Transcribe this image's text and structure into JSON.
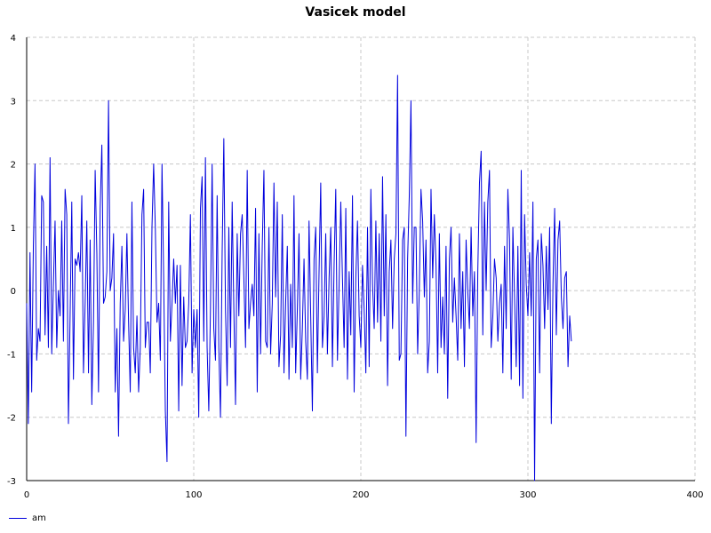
{
  "chart_data": {
    "type": "line",
    "title": "Vasicek model",
    "xlabel": "",
    "ylabel": "",
    "xlim": [
      0,
      400
    ],
    "ylim": [
      -3,
      4
    ],
    "x_ticks": [
      "0",
      "100",
      "200",
      "300",
      "400"
    ],
    "y_ticks": [
      "4",
      "3",
      "2",
      "1",
      "0",
      "-1",
      "-2",
      "-3"
    ],
    "grid": true,
    "legend_position": "bottom-left",
    "series": [
      {
        "name": "am",
        "color": "#0000dd",
        "x_start": 0,
        "x_step": 1,
        "values": [
          -0.2,
          -2.1,
          0.6,
          -1.6,
          0.7,
          2.0,
          -1.1,
          -0.6,
          -0.8,
          1.5,
          1.4,
          -0.7,
          0.7,
          -0.9,
          2.1,
          -1.0,
          0.1,
          1.1,
          -0.9,
          0.0,
          -0.4,
          1.1,
          -0.8,
          1.6,
          1.2,
          -2.1,
          -0.4,
          1.4,
          -1.4,
          0.5,
          0.4,
          0.6,
          0.3,
          1.5,
          -1.3,
          -0.2,
          1.1,
          -1.3,
          0.8,
          -1.8,
          -0.5,
          1.9,
          0.6,
          -1.6,
          1.3,
          2.3,
          -0.2,
          -0.1,
          0.3,
          3.0,
          0.0,
          0.2,
          0.9,
          -1.6,
          -0.6,
          -2.3,
          -0.2,
          0.7,
          -0.8,
          -0.3,
          0.9,
          -0.5,
          -1.6,
          1.4,
          -0.9,
          -1.3,
          -0.4,
          -1.6,
          -0.9,
          1.2,
          1.6,
          -0.9,
          -0.5,
          -0.5,
          -1.3,
          1.0,
          2.0,
          1.0,
          -0.5,
          -0.2,
          -1.1,
          2.0,
          0.2,
          -1.9,
          -2.7,
          1.4,
          -0.8,
          -0.2,
          0.5,
          -0.2,
          0.4,
          -1.9,
          0.4,
          -1.5,
          -0.1,
          -0.9,
          -0.8,
          -0.2,
          1.2,
          -1.3,
          -0.3,
          -0.9,
          -0.3,
          -2.0,
          1.3,
          1.8,
          -0.8,
          2.1,
          -0.9,
          -1.9,
          -0.3,
          2.0,
          -0.6,
          -1.1,
          1.5,
          -0.9,
          -2.0,
          0.6,
          2.4,
          -0.3,
          -1.5,
          1.0,
          -0.9,
          1.4,
          -0.3,
          -1.8,
          0.9,
          -0.4,
          0.9,
          1.2,
          0.2,
          -0.9,
          1.9,
          -0.6,
          -0.2,
          0.1,
          -0.4,
          1.3,
          -1.6,
          0.9,
          -1.0,
          0.7,
          1.9,
          -0.8,
          -0.9,
          1.0,
          -1.0,
          -0.2,
          1.7,
          -0.1,
          1.4,
          -1.2,
          -0.7,
          1.2,
          -1.3,
          -0.2,
          0.7,
          -1.4,
          0.1,
          -0.9,
          1.5,
          -1.3,
          -0.3,
          0.9,
          -1.4,
          -0.6,
          0.5,
          -0.8,
          -1.4,
          1.1,
          -0.4,
          -1.9,
          0.5,
          1.0,
          -1.3,
          0.3,
          1.7,
          -0.9,
          -0.4,
          0.9,
          -1.0,
          0.2,
          1.0,
          -1.2,
          0.4,
          1.6,
          -1.1,
          0.1,
          1.4,
          0.2,
          -0.9,
          1.3,
          -1.4,
          0.3,
          -0.7,
          1.5,
          -1.6,
          0.2,
          1.1,
          -0.4,
          -0.9,
          0.4,
          -0.3,
          -1.3,
          1.0,
          -1.2,
          1.6,
          0.1,
          -0.6,
          1.1,
          -0.5,
          0.9,
          -0.8,
          1.8,
          -0.4,
          1.2,
          -1.5,
          0.3,
          0.8,
          -0.6,
          0.5,
          0.9,
          3.4,
          -1.1,
          -1.0,
          0.8,
          1.0,
          -2.3,
          0.5,
          1.5,
          3.0,
          -0.2,
          1.0,
          1.0,
          -1.0,
          0.0,
          1.6,
          1.1,
          -0.1,
          0.8,
          -1.3,
          -0.8,
          1.6,
          0.2,
          1.2,
          0.4,
          -1.3,
          0.9,
          -0.9,
          -0.1,
          -1.0,
          0.7,
          -1.7,
          0.5,
          1.0,
          -0.5,
          0.2,
          -0.4,
          -1.1,
          0.9,
          -0.6,
          0.3,
          -1.2,
          0.8,
          0.0,
          -0.6,
          1.0,
          -0.4,
          0.3,
          -2.4,
          0.3,
          1.7,
          2.2,
          -0.7,
          1.4,
          0.0,
          1.4,
          1.9,
          -0.9,
          -0.4,
          0.5,
          0.2,
          -0.8,
          -0.2,
          0.1,
          -1.3,
          0.7,
          -0.6,
          1.6,
          0.8,
          -1.4,
          1.0,
          -0.1,
          -1.2,
          0.7,
          -1.5,
          1.9,
          -1.7,
          1.2,
          0.1,
          -0.4,
          0.6,
          -0.4,
          1.4,
          -3.0,
          0.5,
          0.8,
          -1.3,
          0.9,
          0.4,
          -0.6,
          0.7,
          -0.3,
          1.0,
          -2.1,
          0.1,
          1.3,
          -0.7,
          0.8,
          1.1,
          -0.1,
          -0.6,
          0.2,
          0.3,
          -1.2,
          -0.4,
          -0.8
        ]
      }
    ]
  }
}
